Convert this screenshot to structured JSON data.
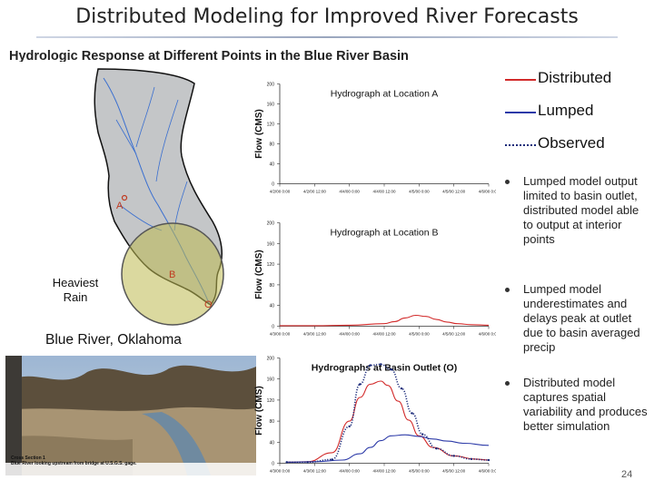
{
  "slide": {
    "title": "Distributed Modeling for Improved River Forecasts",
    "subtitle": "Hydrologic Response at Different Points in the Blue River Basin",
    "page_number": "24"
  },
  "map": {
    "heaviest_rain_label": "Heaviest Rain",
    "river_label": "Blue River, Oklahoma",
    "markers": [
      "A",
      "B",
      "O"
    ]
  },
  "photo": {
    "caption_line1": "Cross Section 1",
    "caption_line2": "Blue River looking upstream from bridge at U.S.G.S. gage."
  },
  "legend": {
    "distributed": "Distributed",
    "lumped": "Lumped",
    "observed": "Observed"
  },
  "colors": {
    "distributed": "#d22a2a",
    "lumped": "#2c3aa8",
    "observed": "#1a2a7a"
  },
  "bullets": [
    "Lumped model output limited to basin outlet, distributed model able to output at interior points",
    "Lumped model underestimates and delays peak at outlet due to basin averaged precip",
    "Distributed model captures spatial variability and produces better simulation"
  ],
  "chart_data": [
    {
      "type": "line",
      "title": "Hydrograph at Location A",
      "ylabel": "Flow (CMS)",
      "xlabel": "",
      "ylim": [
        0,
        200
      ],
      "yticks": [
        0,
        40,
        80,
        120,
        160,
        200
      ],
      "xticks": [
        "4/2/00 0:00",
        "4/2/00 12:00",
        "4/4/00 0:00",
        "4/4/00 12:00",
        "4/5/00 0:00",
        "4/5/00 12:00",
        "4/6/00 0:00"
      ],
      "grid": false,
      "series": []
    },
    {
      "type": "line",
      "title": "Hydrograph at Location B",
      "ylabel": "Flow (CMS)",
      "xlabel": "",
      "ylim": [
        0,
        200
      ],
      "yticks": [
        0,
        40,
        80,
        120,
        160,
        200
      ],
      "xticks": [
        "4/3/00 0:00",
        "4/3/00 12:00",
        "4/4/00 0:00",
        "4/4/00 12:00",
        "4/5/00 0:00",
        "4/5/00 12:00",
        "4/6/00 0:00"
      ],
      "grid": false,
      "series": [
        {
          "style": "distributed",
          "x": [
            0,
            1,
            2,
            3,
            3.3,
            3.6,
            3.9,
            4.2,
            4.5,
            4.8,
            5.1,
            5.5,
            6
          ],
          "values": [
            1,
            1,
            2,
            5,
            9,
            16,
            21,
            19,
            13,
            8,
            5,
            3,
            2
          ]
        }
      ]
    },
    {
      "type": "line",
      "title": "Hydrographs at Basin Outlet (O)",
      "ylabel": "Flow (CMS)",
      "xlabel": "",
      "ylim": [
        0,
        200
      ],
      "yticks": [
        0,
        40,
        80,
        120,
        160,
        200
      ],
      "xticks": [
        "4/3/00 0:00",
        "4/3/00 12:00",
        "4/4/00 0:00",
        "4/4/00 12:00",
        "4/5/00 0:00",
        "4/5/00 12:00",
        "4/6/00 0:00"
      ],
      "grid": false,
      "series": [
        {
          "style": "distributed",
          "x": [
            0.2,
            0.8,
            1.5,
            2.0,
            2.3,
            2.6,
            2.9,
            3.1,
            3.4,
            3.7,
            4.0,
            4.4,
            5.0,
            5.6,
            6.0
          ],
          "values": [
            2,
            3,
            20,
            80,
            125,
            150,
            156,
            148,
            118,
            82,
            52,
            30,
            14,
            8,
            6
          ]
        },
        {
          "style": "lumped",
          "x": [
            0.2,
            1.0,
            1.8,
            2.3,
            2.6,
            2.9,
            3.2,
            3.6,
            4.0,
            4.4,
            4.8,
            5.3,
            6.0
          ],
          "values": [
            2,
            3,
            6,
            18,
            30,
            43,
            52,
            54,
            51,
            46,
            42,
            38,
            34
          ]
        },
        {
          "style": "observed",
          "x": [
            0.2,
            0.8,
            1.5,
            2.0,
            2.3,
            2.6,
            2.9,
            3.2,
            3.5,
            3.8,
            4.1,
            4.5,
            5.0,
            5.5,
            6.0
          ],
          "values": [
            2,
            2,
            7,
            70,
            150,
            186,
            188,
            178,
            142,
            95,
            55,
            28,
            14,
            8,
            6
          ]
        }
      ]
    }
  ]
}
